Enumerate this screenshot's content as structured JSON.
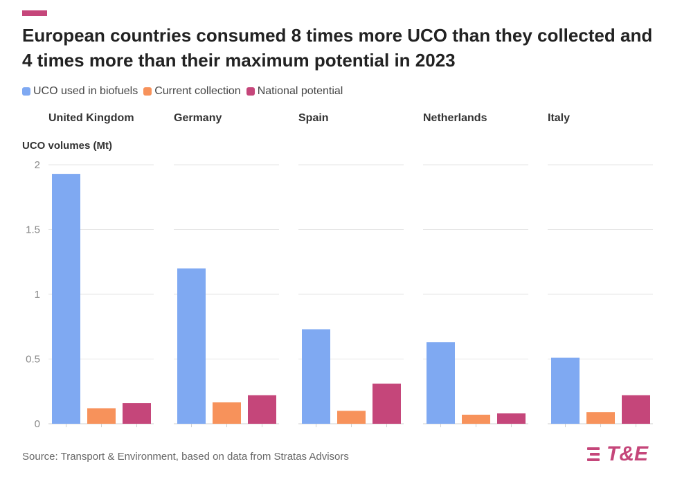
{
  "header": {
    "title": "European countries consumed 8 times more UCO than they collected and 4 times more than their maximum potential in 2023"
  },
  "footer": {
    "source": "Source: Transport & Environment, based on data from Stratas Advisors",
    "logo_text": "T&E"
  },
  "colors": {
    "accent": "#c5467a",
    "uco_used": "#7fa9f2",
    "current_collection": "#f7925b",
    "national_potential": "#c5467a",
    "grid": "#e6e6e6",
    "tick": "#888888"
  },
  "chart_data": {
    "type": "bar",
    "title": "European countries consumed 8 times more UCO than they collected and 4 times more than their maximum potential in 2023",
    "ylabel": "UCO volumes (Mt)",
    "xlabel": "",
    "ylim": [
      0,
      2
    ],
    "yticks": [
      0,
      0.5,
      1,
      1.5,
      2
    ],
    "ytick_labels": [
      "0",
      "0.5",
      "1",
      "1.5",
      "2"
    ],
    "grid": true,
    "legend_position": "top-left",
    "facets": [
      "United Kingdom",
      "Germany",
      "Spain",
      "Netherlands",
      "Italy"
    ],
    "series": [
      {
        "name": "UCO used in biofuels",
        "values": [
          1.93,
          1.2,
          0.73,
          0.63,
          0.51
        ]
      },
      {
        "name": "Current collection",
        "values": [
          0.12,
          0.165,
          0.1,
          0.07,
          0.09
        ]
      },
      {
        "name": "National potential",
        "values": [
          0.16,
          0.22,
          0.31,
          0.08,
          0.22
        ]
      }
    ]
  }
}
